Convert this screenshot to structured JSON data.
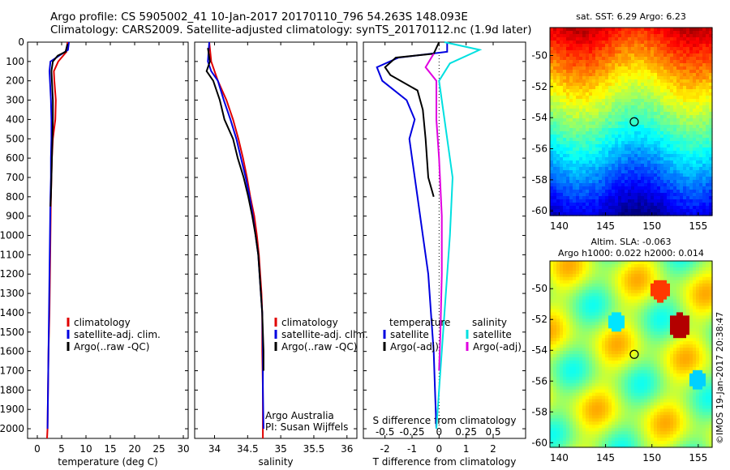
{
  "header": {
    "line1": "Argo profile: CS 5905002_41 10-Jan-2017 20170110_796 54.263S 148.093E",
    "line2": "Climatology: CARS2009. Satellite-adjusted climatology: synTS_20170112.nc (1.9d later)"
  },
  "colors": {
    "climatology": "#e00000",
    "satellite": "#0000e0",
    "argo": "#000000",
    "sat_salinity": "#00e0e0",
    "argo_salinity": "#e000e0"
  },
  "chart_data": [
    {
      "type": "line",
      "xlabel": "temperature (deg C)",
      "xlim": [
        -2,
        31
      ],
      "xticks": [
        0,
        5,
        10,
        15,
        20,
        25,
        30
      ],
      "ylim": [
        2050,
        0
      ],
      "yticks": [
        0,
        100,
        200,
        300,
        400,
        500,
        600,
        700,
        800,
        900,
        1000,
        1100,
        1200,
        1300,
        1400,
        1500,
        1600,
        1700,
        1800,
        1900,
        2000
      ],
      "legend": [
        "climatology",
        "satellite-adj. clim.",
        "Argo(..raw -QC)"
      ],
      "series": [
        {
          "name": "climatology",
          "color": "climatology",
          "points": [
            [
              6.2,
              0
            ],
            [
              6.0,
              50
            ],
            [
              4.3,
              100
            ],
            [
              3.4,
              150
            ],
            [
              3.5,
              200
            ],
            [
              3.8,
              300
            ],
            [
              3.7,
              400
            ],
            [
              3.2,
              500
            ],
            [
              3.0,
              600
            ],
            [
              2.9,
              700
            ],
            [
              2.8,
              800
            ],
            [
              2.7,
              1000
            ],
            [
              2.6,
              1200
            ],
            [
              2.5,
              1400
            ],
            [
              2.3,
              1600
            ],
            [
              2.2,
              1800
            ],
            [
              2.1,
              2000
            ],
            [
              2.0,
              2050
            ]
          ]
        },
        {
          "name": "satellite-adj. clim.",
          "color": "satellite",
          "points": [
            [
              6.5,
              0
            ],
            [
              6.3,
              40
            ],
            [
              4.5,
              70
            ],
            [
              2.7,
              100
            ],
            [
              2.5,
              150
            ],
            [
              2.6,
              200
            ],
            [
              2.8,
              300
            ],
            [
              2.9,
              400
            ],
            [
              2.9,
              500
            ],
            [
              2.8,
              600
            ],
            [
              2.8,
              700
            ],
            [
              2.7,
              800
            ],
            [
              2.6,
              1000
            ],
            [
              2.5,
              1200
            ],
            [
              2.4,
              1400
            ],
            [
              2.3,
              1600
            ],
            [
              2.2,
              1800
            ],
            [
              2.1,
              2000
            ]
          ]
        },
        {
          "name": "Argo(..raw -QC)",
          "color": "argo",
          "points": [
            [
              6.2,
              10
            ],
            [
              5.8,
              50
            ],
            [
              4.2,
              70
            ],
            [
              3.2,
              100
            ],
            [
              2.9,
              150
            ],
            [
              3.0,
              200
            ],
            [
              3.2,
              300
            ],
            [
              3.2,
              400
            ],
            [
              3.1,
              500
            ],
            [
              3.0,
              600
            ],
            [
              2.9,
              700
            ],
            [
              2.8,
              800
            ],
            [
              2.7,
              850
            ]
          ]
        }
      ]
    },
    {
      "type": "line",
      "xlabel": "salinity",
      "xlim": [
        33.7,
        36.15
      ],
      "xticks": [
        34,
        34.5,
        35,
        35.5,
        36
      ],
      "ylim": [
        2050,
        0
      ],
      "legend": [
        "climatology",
        "satellite-adj. clim.",
        "Argo(..raw -QC)"
      ],
      "annotations": [
        "Argo Australia",
        "PI: Susan Wijffels"
      ],
      "series": [
        {
          "name": "climatology",
          "color": "climatology",
          "points": [
            [
              33.92,
              0
            ],
            [
              33.95,
              100
            ],
            [
              34.05,
              200
            ],
            [
              34.18,
              300
            ],
            [
              34.28,
              400
            ],
            [
              34.36,
              500
            ],
            [
              34.43,
              600
            ],
            [
              34.49,
              700
            ],
            [
              34.54,
              800
            ],
            [
              34.6,
              900
            ],
            [
              34.64,
              1000
            ],
            [
              34.67,
              1100
            ],
            [
              34.69,
              1200
            ],
            [
              34.71,
              1300
            ],
            [
              34.72,
              1400
            ],
            [
              34.72,
              1600
            ],
            [
              34.73,
              1800
            ],
            [
              34.73,
              2000
            ],
            [
              34.73,
              2050
            ]
          ]
        },
        {
          "name": "satellite-adj. clim.",
          "color": "satellite",
          "points": [
            [
              33.92,
              0
            ],
            [
              33.9,
              100
            ],
            [
              33.95,
              150
            ],
            [
              34.05,
              200
            ],
            [
              34.14,
              300
            ],
            [
              34.24,
              400
            ],
            [
              34.33,
              500
            ],
            [
              34.4,
              600
            ],
            [
              34.47,
              700
            ],
            [
              34.53,
              800
            ],
            [
              34.58,
              900
            ],
            [
              34.62,
              1000
            ],
            [
              34.66,
              1100
            ],
            [
              34.68,
              1200
            ],
            [
              34.7,
              1300
            ],
            [
              34.72,
              1400
            ],
            [
              34.73,
              1600
            ],
            [
              34.73,
              1800
            ],
            [
              34.74,
              2000
            ]
          ]
        },
        {
          "name": "Argo(..raw -QC)",
          "color": "argo",
          "points": [
            [
              33.9,
              30
            ],
            [
              33.93,
              100
            ],
            [
              33.88,
              150
            ],
            [
              33.98,
              200
            ],
            [
              34.08,
              300
            ],
            [
              34.15,
              400
            ],
            [
              34.28,
              500
            ],
            [
              34.35,
              600
            ],
            [
              34.44,
              700
            ],
            [
              34.51,
              800
            ],
            [
              34.57,
              900
            ],
            [
              34.62,
              1000
            ],
            [
              34.66,
              1100
            ],
            [
              34.68,
              1200
            ],
            [
              34.7,
              1300
            ],
            [
              34.72,
              1400
            ],
            [
              34.73,
              1500
            ],
            [
              34.74,
              1600
            ],
            [
              34.74,
              1700
            ]
          ]
        }
      ]
    },
    {
      "type": "line",
      "xlabel": "T difference from climatology",
      "xlabel_top": "S difference from climatology",
      "xlim": [
        -2.8,
        3.2
      ],
      "xticks": [
        -2,
        -1,
        0,
        1,
        2
      ],
      "xticks_top_labels": [
        "-0.5",
        "-0.25",
        "0",
        "0.25",
        "0.5"
      ],
      "ylim": [
        2050,
        0
      ],
      "legend": [
        "temperature",
        "satellite",
        "Argo(-adj)",
        "salinity",
        "satellite",
        "Argo(-adj)"
      ],
      "series": [
        {
          "name": "satellite",
          "color": "satellite",
          "points": [
            [
              0.3,
              0
            ],
            [
              0.3,
              50
            ],
            [
              -1.5,
              80
            ],
            [
              -2.3,
              130
            ],
            [
              -2.1,
              200
            ],
            [
              -1.2,
              300
            ],
            [
              -0.9,
              400
            ],
            [
              -1.1,
              500
            ],
            [
              -1.0,
              600
            ],
            [
              -0.8,
              800
            ],
            [
              -0.6,
              1000
            ],
            [
              -0.4,
              1200
            ],
            [
              -0.3,
              1400
            ],
            [
              -0.2,
              1600
            ],
            [
              -0.15,
              1800
            ],
            [
              -0.1,
              2000
            ]
          ]
        },
        {
          "name": "Argo(-adj)",
          "color": "argo",
          "points": [
            [
              0,
              0
            ],
            [
              -0.2,
              60
            ],
            [
              -1.6,
              80
            ],
            [
              -2.0,
              130
            ],
            [
              -1.8,
              170
            ],
            [
              -0.8,
              250
            ],
            [
              -0.6,
              350
            ],
            [
              -0.5,
              500
            ],
            [
              -0.4,
              700
            ],
            [
              -0.2,
              800
            ]
          ]
        },
        {
          "name": "satellite",
          "color": "sat_salinity",
          "points": [
            [
              0.2,
              0
            ],
            [
              1.5,
              40
            ],
            [
              0.4,
              110
            ],
            [
              0.0,
              200
            ],
            [
              0.2,
              400
            ],
            [
              0.5,
              700
            ],
            [
              0.4,
              1000
            ],
            [
              0.2,
              1400
            ],
            [
              0.0,
              1800
            ],
            [
              -0.1,
              2000
            ]
          ]
        },
        {
          "name": "Argo(-adj)",
          "color": "argo_salinity",
          "points": [
            [
              -0.2,
              60
            ],
            [
              -0.5,
              130
            ],
            [
              -0.1,
              200
            ],
            [
              -0.1,
              400
            ],
            [
              0.0,
              600
            ],
            [
              0.1,
              900
            ],
            [
              0.1,
              1200
            ],
            [
              0.05,
              1500
            ],
            [
              0.0,
              1700
            ]
          ]
        }
      ]
    },
    {
      "type": "heatmap",
      "title": "sat. SST: 6.29 Argo: 6.23",
      "xticks": [
        140,
        145,
        150,
        155
      ],
      "yticks": [
        -50,
        -52,
        -54,
        -56,
        -58,
        -60
      ],
      "xlim": [
        139,
        156.5
      ],
      "ylim": [
        -60.3,
        -48.2
      ],
      "marker": {
        "lon": 148.093,
        "lat": -54.263
      }
    },
    {
      "type": "heatmap",
      "title": "Altim. SLA: -0.063",
      "subtitle": "Argo h1000: 0.022 h2000: 0.014",
      "xticks": [
        140,
        145,
        150,
        155
      ],
      "yticks": [
        -50,
        -52,
        -54,
        -56,
        -58,
        -60
      ],
      "xlim": [
        139,
        156.5
      ],
      "ylim": [
        -60.3,
        -48.2
      ],
      "marker": {
        "lon": 148.093,
        "lat": -54.263
      }
    }
  ],
  "credit": "©IMOS 19-Jan-2017 20:38:47"
}
